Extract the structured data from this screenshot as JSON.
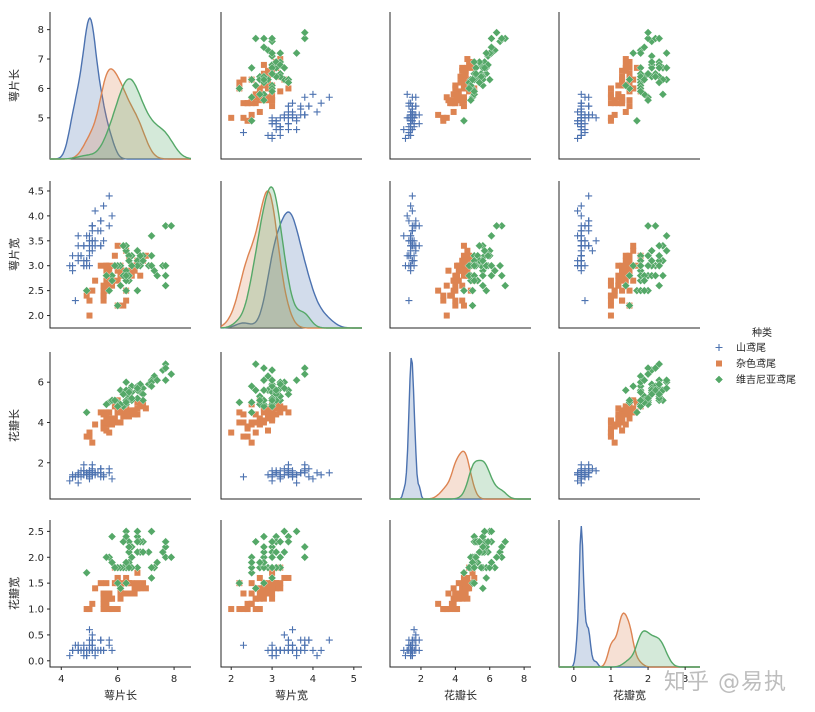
{
  "watermark": "知乎 @易执",
  "chart_data": {
    "type": "scatter",
    "plot_kind": "pairplot",
    "variables": [
      {
        "key": "sl",
        "label": "萼片长",
        "range": [
          3.6,
          8.6
        ],
        "ticks": [
          4,
          6,
          8
        ]
      },
      {
        "key": "sw",
        "label": "萼片宽",
        "range": [
          1.75,
          4.7
        ],
        "ticks": [
          2.0,
          2.5,
          3.0,
          3.5,
          4.0,
          4.5
        ]
      },
      {
        "key": "pl",
        "label": "花瓣长",
        "range": [
          0.2,
          7.5
        ],
        "ticks": [
          2,
          4,
          6
        ]
      },
      {
        "key": "pw",
        "label": "花瓣宽",
        "range": [
          -0.12,
          2.72
        ],
        "ticks": [
          0.0,
          0.5,
          1.0,
          1.5,
          2.0,
          2.5
        ]
      }
    ],
    "x_tick_labels": [
      [
        "4",
        "6",
        "8"
      ],
      [
        "2",
        "3",
        "4",
        "5"
      ],
      [
        "2",
        "4",
        "6",
        "8"
      ],
      [
        "0",
        "1",
        "2",
        "3"
      ]
    ],
    "x_tick_values": [
      [
        4,
        6,
        8
      ],
      [
        2,
        3,
        4,
        5
      ],
      [
        2,
        4,
        6,
        8
      ],
      [
        0,
        1,
        2,
        3
      ]
    ],
    "y_tick_labels": [
      [
        "5",
        "6",
        "7",
        "8"
      ],
      [
        "2.0",
        "2.5",
        "3.0",
        "3.5",
        "4.0",
        "4.5"
      ],
      [
        "2",
        "4",
        "6"
      ],
      [
        "0.0",
        "0.5",
        "1.0",
        "1.5",
        "2.0",
        "2.5"
      ]
    ],
    "y_tick_values": [
      [
        5,
        6,
        7,
        8
      ],
      [
        2.0,
        2.5,
        3.0,
        3.5,
        4.0,
        4.5
      ],
      [
        2,
        4,
        6
      ],
      [
        0.0,
        0.5,
        1.0,
        1.5,
        2.0,
        2.5
      ]
    ],
    "x_ranges": [
      [
        3.6,
        8.6
      ],
      [
        1.75,
        5.2
      ],
      [
        0.2,
        8.4
      ],
      [
        -0.4,
        3.4
      ]
    ],
    "legend": {
      "title": "种类",
      "position": "right-center"
    },
    "species": [
      {
        "name": "山鸢尾",
        "color": "#4c72b0",
        "marker": "plus"
      },
      {
        "name": "杂色鸢尾",
        "color": "#dd8452",
        "marker": "square"
      },
      {
        "name": "维吉尼亚鸢尾",
        "color": "#55a868",
        "marker": "diamond"
      }
    ],
    "grid": false,
    "data": [
      [
        [
          5.1,
          3.5,
          1.4,
          0.2
        ],
        [
          4.9,
          3.0,
          1.4,
          0.2
        ],
        [
          4.7,
          3.2,
          1.3,
          0.2
        ],
        [
          4.6,
          3.1,
          1.5,
          0.2
        ],
        [
          5.0,
          3.6,
          1.4,
          0.2
        ],
        [
          5.4,
          3.9,
          1.7,
          0.4
        ],
        [
          4.6,
          3.4,
          1.4,
          0.3
        ],
        [
          5.0,
          3.4,
          1.5,
          0.2
        ],
        [
          4.4,
          2.9,
          1.4,
          0.2
        ],
        [
          4.9,
          3.1,
          1.5,
          0.1
        ],
        [
          5.4,
          3.7,
          1.5,
          0.2
        ],
        [
          4.8,
          3.4,
          1.6,
          0.2
        ],
        [
          4.8,
          3.0,
          1.4,
          0.1
        ],
        [
          4.3,
          3.0,
          1.1,
          0.1
        ],
        [
          5.8,
          4.0,
          1.2,
          0.2
        ],
        [
          5.7,
          4.4,
          1.5,
          0.4
        ],
        [
          5.4,
          3.9,
          1.3,
          0.4
        ],
        [
          5.1,
          3.5,
          1.4,
          0.3
        ],
        [
          5.7,
          3.8,
          1.7,
          0.3
        ],
        [
          5.1,
          3.8,
          1.5,
          0.3
        ],
        [
          5.4,
          3.4,
          1.7,
          0.2
        ],
        [
          5.1,
          3.7,
          1.5,
          0.4
        ],
        [
          4.6,
          3.6,
          1.0,
          0.2
        ],
        [
          5.1,
          3.3,
          1.7,
          0.5
        ],
        [
          4.8,
          3.4,
          1.9,
          0.2
        ],
        [
          5.0,
          3.0,
          1.6,
          0.2
        ],
        [
          5.0,
          3.4,
          1.6,
          0.4
        ],
        [
          5.2,
          3.5,
          1.5,
          0.2
        ],
        [
          5.2,
          3.4,
          1.4,
          0.2
        ],
        [
          4.7,
          3.2,
          1.6,
          0.2
        ],
        [
          4.8,
          3.1,
          1.6,
          0.2
        ],
        [
          5.4,
          3.4,
          1.5,
          0.4
        ],
        [
          5.2,
          4.1,
          1.5,
          0.1
        ],
        [
          5.5,
          4.2,
          1.4,
          0.2
        ],
        [
          4.9,
          3.1,
          1.5,
          0.2
        ],
        [
          5.0,
          3.2,
          1.2,
          0.2
        ],
        [
          5.5,
          3.5,
          1.3,
          0.2
        ],
        [
          4.9,
          3.6,
          1.4,
          0.1
        ],
        [
          4.4,
          3.0,
          1.3,
          0.2
        ],
        [
          5.1,
          3.4,
          1.5,
          0.2
        ],
        [
          5.0,
          3.5,
          1.3,
          0.3
        ],
        [
          4.5,
          2.3,
          1.3,
          0.3
        ],
        [
          4.4,
          3.2,
          1.3,
          0.2
        ],
        [
          5.0,
          3.5,
          1.6,
          0.6
        ],
        [
          5.1,
          3.8,
          1.9,
          0.4
        ],
        [
          4.8,
          3.0,
          1.4,
          0.3
        ],
        [
          5.1,
          3.8,
          1.6,
          0.2
        ],
        [
          4.6,
          3.2,
          1.4,
          0.2
        ],
        [
          5.3,
          3.7,
          1.5,
          0.2
        ],
        [
          5.0,
          3.3,
          1.4,
          0.2
        ]
      ],
      [
        [
          7.0,
          3.2,
          4.7,
          1.4
        ],
        [
          6.4,
          3.2,
          4.5,
          1.5
        ],
        [
          6.9,
          3.1,
          4.9,
          1.5
        ],
        [
          5.5,
          2.3,
          4.0,
          1.3
        ],
        [
          6.5,
          2.8,
          4.6,
          1.5
        ],
        [
          5.7,
          2.8,
          4.5,
          1.3
        ],
        [
          6.3,
          3.3,
          4.7,
          1.6
        ],
        [
          4.9,
          2.4,
          3.3,
          1.0
        ],
        [
          6.6,
          2.9,
          4.6,
          1.3
        ],
        [
          5.2,
          2.7,
          3.9,
          1.4
        ],
        [
          5.0,
          2.0,
          3.5,
          1.0
        ],
        [
          5.9,
          3.0,
          4.2,
          1.5
        ],
        [
          6.0,
          2.2,
          4.0,
          1.0
        ],
        [
          6.1,
          2.9,
          4.7,
          1.4
        ],
        [
          5.6,
          2.9,
          3.6,
          1.3
        ],
        [
          6.7,
          3.1,
          4.4,
          1.4
        ],
        [
          5.6,
          3.0,
          4.5,
          1.5
        ],
        [
          5.8,
          2.7,
          4.1,
          1.0
        ],
        [
          6.2,
          2.2,
          4.5,
          1.5
        ],
        [
          5.6,
          2.5,
          3.9,
          1.1
        ],
        [
          5.9,
          3.2,
          4.8,
          1.8
        ],
        [
          6.1,
          2.8,
          4.0,
          1.3
        ],
        [
          6.3,
          2.5,
          4.9,
          1.5
        ],
        [
          6.1,
          2.8,
          4.7,
          1.2
        ],
        [
          6.4,
          2.9,
          4.3,
          1.3
        ],
        [
          6.6,
          3.0,
          4.4,
          1.4
        ],
        [
          6.8,
          2.8,
          4.8,
          1.4
        ],
        [
          6.7,
          3.0,
          5.0,
          1.7
        ],
        [
          6.0,
          2.9,
          4.5,
          1.5
        ],
        [
          5.7,
          2.6,
          3.5,
          1.0
        ],
        [
          5.5,
          2.4,
          3.8,
          1.1
        ],
        [
          5.5,
          2.4,
          3.7,
          1.0
        ],
        [
          5.8,
          2.7,
          3.9,
          1.2
        ],
        [
          6.0,
          2.7,
          5.1,
          1.6
        ],
        [
          5.4,
          3.0,
          4.5,
          1.5
        ],
        [
          6.0,
          3.4,
          4.5,
          1.6
        ],
        [
          6.7,
          3.1,
          4.7,
          1.5
        ],
        [
          6.3,
          2.3,
          4.4,
          1.3
        ],
        [
          5.6,
          3.0,
          4.1,
          1.3
        ],
        [
          5.5,
          2.5,
          4.0,
          1.3
        ],
        [
          5.5,
          2.6,
          4.4,
          1.2
        ],
        [
          6.1,
          3.0,
          4.6,
          1.4
        ],
        [
          5.8,
          2.6,
          4.0,
          1.2
        ],
        [
          5.0,
          2.3,
          3.3,
          1.0
        ],
        [
          5.6,
          2.7,
          4.2,
          1.3
        ],
        [
          5.7,
          3.0,
          4.2,
          1.2
        ],
        [
          5.7,
          2.9,
          4.2,
          1.3
        ],
        [
          6.2,
          2.9,
          4.3,
          1.3
        ],
        [
          5.1,
          2.5,
          3.0,
          1.1
        ],
        [
          5.7,
          2.8,
          4.1,
          1.3
        ]
      ],
      [
        [
          6.3,
          3.3,
          6.0,
          2.5
        ],
        [
          5.8,
          2.7,
          5.1,
          1.9
        ],
        [
          7.1,
          3.0,
          5.9,
          2.1
        ],
        [
          6.3,
          2.9,
          5.6,
          1.8
        ],
        [
          6.5,
          3.0,
          5.8,
          2.2
        ],
        [
          7.6,
          3.0,
          6.6,
          2.1
        ],
        [
          4.9,
          2.5,
          4.5,
          1.7
        ],
        [
          7.3,
          2.9,
          6.3,
          1.8
        ],
        [
          6.7,
          2.5,
          5.8,
          1.8
        ],
        [
          7.2,
          3.6,
          6.1,
          2.5
        ],
        [
          6.5,
          3.2,
          5.1,
          2.0
        ],
        [
          6.4,
          2.7,
          5.3,
          1.9
        ],
        [
          6.8,
          3.0,
          5.5,
          2.1
        ],
        [
          5.7,
          2.5,
          5.0,
          2.0
        ],
        [
          5.8,
          2.8,
          5.1,
          2.4
        ],
        [
          6.4,
          3.2,
          5.3,
          2.3
        ],
        [
          6.5,
          3.0,
          5.5,
          1.8
        ],
        [
          7.7,
          3.8,
          6.7,
          2.2
        ],
        [
          7.7,
          2.6,
          6.9,
          2.3
        ],
        [
          6.0,
          2.2,
          5.0,
          1.5
        ],
        [
          6.9,
          3.2,
          5.7,
          2.3
        ],
        [
          5.6,
          2.8,
          4.9,
          2.0
        ],
        [
          7.7,
          2.8,
          6.7,
          2.0
        ],
        [
          6.3,
          2.7,
          4.9,
          1.8
        ],
        [
          6.7,
          3.3,
          5.7,
          2.1
        ],
        [
          7.2,
          3.2,
          6.0,
          1.8
        ],
        [
          6.2,
          2.8,
          4.8,
          1.8
        ],
        [
          6.1,
          3.0,
          4.9,
          1.8
        ],
        [
          6.4,
          2.8,
          5.6,
          2.1
        ],
        [
          7.2,
          3.0,
          5.8,
          1.6
        ],
        [
          7.4,
          2.8,
          6.1,
          1.9
        ],
        [
          7.9,
          3.8,
          6.4,
          2.0
        ],
        [
          6.4,
          2.8,
          5.6,
          2.2
        ],
        [
          6.3,
          2.8,
          5.1,
          1.5
        ],
        [
          6.1,
          2.6,
          5.6,
          1.4
        ],
        [
          7.7,
          3.0,
          6.1,
          2.3
        ],
        [
          6.3,
          3.4,
          5.6,
          2.4
        ],
        [
          6.4,
          3.1,
          5.5,
          1.8
        ],
        [
          6.0,
          3.0,
          4.8,
          1.8
        ],
        [
          6.9,
          3.1,
          5.4,
          2.1
        ],
        [
          6.7,
          3.1,
          5.6,
          2.4
        ],
        [
          6.9,
          3.1,
          5.1,
          2.3
        ],
        [
          5.8,
          2.7,
          5.1,
          1.9
        ],
        [
          6.8,
          3.2,
          5.9,
          2.3
        ],
        [
          6.7,
          3.3,
          5.7,
          2.5
        ],
        [
          6.7,
          3.0,
          5.2,
          2.3
        ],
        [
          6.3,
          2.5,
          5.0,
          1.9
        ],
        [
          6.5,
          3.0,
          5.2,
          2.0
        ],
        [
          6.2,
          3.4,
          5.4,
          2.3
        ],
        [
          5.9,
          3.0,
          5.1,
          1.8
        ]
      ]
    ]
  }
}
